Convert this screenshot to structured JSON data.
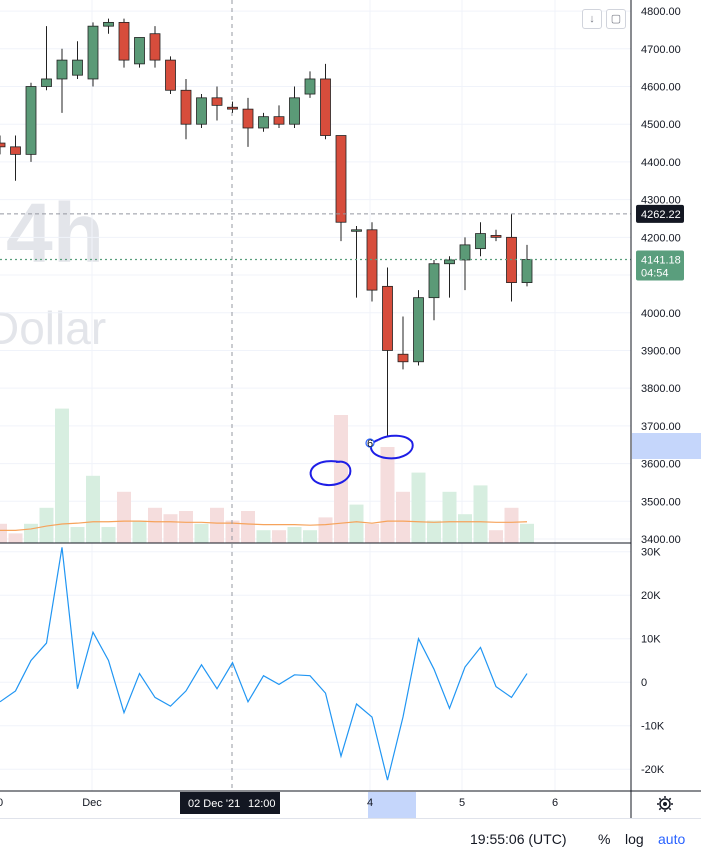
{
  "watermark": {
    "interval": "4h",
    "currency": "Dollar"
  },
  "toolbar": {
    "arrow_icon": "arrow-down-icon",
    "fullscreen_icon": "fullscreen-icon"
  },
  "price_axis": {
    "ticks": [
      "4800.00",
      "4700.00",
      "4600.00",
      "4500.00",
      "4400.00",
      "4300.00",
      "4200.00",
      "4100.00",
      "4000.00",
      "3900.00",
      "3800.00",
      "3700.00",
      "3600.00",
      "3500.00",
      "3400.00"
    ],
    "high_label": "4262.22",
    "last_label": "4141.18",
    "countdown": "04:54"
  },
  "indicator_axis": {
    "ticks": [
      "30K",
      "20K",
      "10K",
      "0",
      "-10K",
      "-20K"
    ]
  },
  "time_axis": {
    "ticks": [
      "0",
      "Dec",
      "4",
      "5",
      "6"
    ],
    "crosshair_label": "02 Dec '21",
    "crosshair_time": "12:00"
  },
  "bottom_bar": {
    "clock": "19:55:06 (UTC)",
    "percent": "%",
    "log": "log",
    "auto": "auto"
  },
  "annotation": {
    "marker": "6"
  },
  "colors": {
    "up": "#26a69a",
    "down": "#ef5350",
    "up_fill": "#5b9a77",
    "down_fill": "#d74d3c",
    "indicator": "#2196f3",
    "ma": "#f6a35b",
    "last_price": "#5a9e7d"
  },
  "chart_data": {
    "type": "candlestick",
    "price_range": [
      3400,
      4840
    ],
    "indicator_range": [
      -25000,
      32000
    ],
    "candles": [
      {
        "o": 4450,
        "h": 4470,
        "l": 4420,
        "c": 4440
      },
      {
        "o": 4440,
        "h": 4470,
        "l": 4350,
        "c": 4420
      },
      {
        "o": 4420,
        "h": 4610,
        "l": 4400,
        "c": 4600
      },
      {
        "o": 4600,
        "h": 4760,
        "l": 4590,
        "c": 4620
      },
      {
        "o": 4620,
        "h": 4700,
        "l": 4530,
        "c": 4670
      },
      {
        "o": 4630,
        "h": 4720,
        "l": 4620,
        "c": 4670
      },
      {
        "o": 4620,
        "h": 4770,
        "l": 4600,
        "c": 4760
      },
      {
        "o": 4760,
        "h": 4780,
        "l": 4740,
        "c": 4770
      },
      {
        "o": 4770,
        "h": 4780,
        "l": 4650,
        "c": 4670
      },
      {
        "o": 4660,
        "h": 4720,
        "l": 4650,
        "c": 4730
      },
      {
        "o": 4740,
        "h": 4760,
        "l": 4650,
        "c": 4670
      },
      {
        "o": 4670,
        "h": 4680,
        "l": 4580,
        "c": 4590
      },
      {
        "o": 4590,
        "h": 4620,
        "l": 4460,
        "c": 4500
      },
      {
        "o": 4500,
        "h": 4580,
        "l": 4490,
        "c": 4570
      },
      {
        "o": 4570,
        "h": 4600,
        "l": 4510,
        "c": 4550
      },
      {
        "o": 4545,
        "h": 4560,
        "l": 4530,
        "c": 4540
      },
      {
        "o": 4540,
        "h": 4570,
        "l": 4440,
        "c": 4490
      },
      {
        "o": 4490,
        "h": 4530,
        "l": 4480,
        "c": 4520
      },
      {
        "o": 4520,
        "h": 4550,
        "l": 4490,
        "c": 4500
      },
      {
        "o": 4500,
        "h": 4600,
        "l": 4490,
        "c": 4570
      },
      {
        "o": 4580,
        "h": 4640,
        "l": 4570,
        "c": 4620
      },
      {
        "o": 4620,
        "h": 4660,
        "l": 4460,
        "c": 4470
      },
      {
        "o": 4470,
        "h": 4470,
        "l": 4190,
        "c": 4240
      },
      {
        "o": 4220,
        "h": 4230,
        "l": 4040,
        "c": 4220
      },
      {
        "o": 4220,
        "h": 4240,
        "l": 4030,
        "c": 4060
      },
      {
        "o": 4070,
        "h": 4120,
        "l": 3670,
        "c": 3900
      },
      {
        "o": 3890,
        "h": 3990,
        "l": 3850,
        "c": 3870
      },
      {
        "o": 3870,
        "h": 4060,
        "l": 3860,
        "c": 4040
      },
      {
        "o": 4040,
        "h": 4140,
        "l": 3980,
        "c": 4130
      },
      {
        "o": 4130,
        "h": 4150,
        "l": 4040,
        "c": 4140
      },
      {
        "o": 4140,
        "h": 4200,
        "l": 4060,
        "c": 4180
      },
      {
        "o": 4170,
        "h": 4240,
        "l": 4150,
        "c": 4210
      },
      {
        "o": 4205,
        "h": 4220,
        "l": 4190,
        "c": 4200
      },
      {
        "o": 4200,
        "h": 4262,
        "l": 4030,
        "c": 4080
      },
      {
        "o": 4080,
        "h": 4180,
        "l": 4070,
        "c": 4141
      }
    ],
    "volume": [
      0.3,
      0.15,
      0.3,
      0.55,
      2.1,
      0.25,
      1.05,
      0.25,
      0.8,
      0.35,
      0.55,
      0.45,
      0.5,
      0.3,
      0.55,
      0.35,
      0.5,
      0.2,
      0.2,
      0.25,
      0.2,
      0.4,
      2.0,
      0.6,
      0.3,
      1.5,
      0.8,
      1.1,
      0.35,
      0.8,
      0.45,
      0.9,
      0.2,
      0.55,
      0.3
    ],
    "volume_ma": [
      0.3,
      0.3,
      0.35,
      0.45,
      0.52,
      0.55,
      0.6,
      0.6,
      0.62,
      0.62,
      0.6,
      0.6,
      0.58,
      0.58,
      0.55,
      0.55,
      0.52,
      0.5,
      0.5,
      0.5,
      0.48,
      0.5,
      0.55,
      0.6,
      0.55,
      0.62,
      0.62,
      0.6,
      0.58,
      0.6,
      0.6,
      0.6,
      0.58,
      0.58,
      0.6
    ],
    "indicator": [
      -4500,
      -2000,
      5000,
      9000,
      31000,
      -1500,
      11500,
      5000,
      -7000,
      2000,
      -3500,
      -5500,
      -2000,
      4000,
      -1500,
      4500,
      -4500,
      1500,
      -500,
      1700,
      1500,
      -2500,
      -17000,
      -5000,
      -8000,
      -22500,
      -8000,
      10000,
      3000,
      -6000,
      3500,
      8000,
      -1000,
      -3500,
      2000
    ]
  }
}
